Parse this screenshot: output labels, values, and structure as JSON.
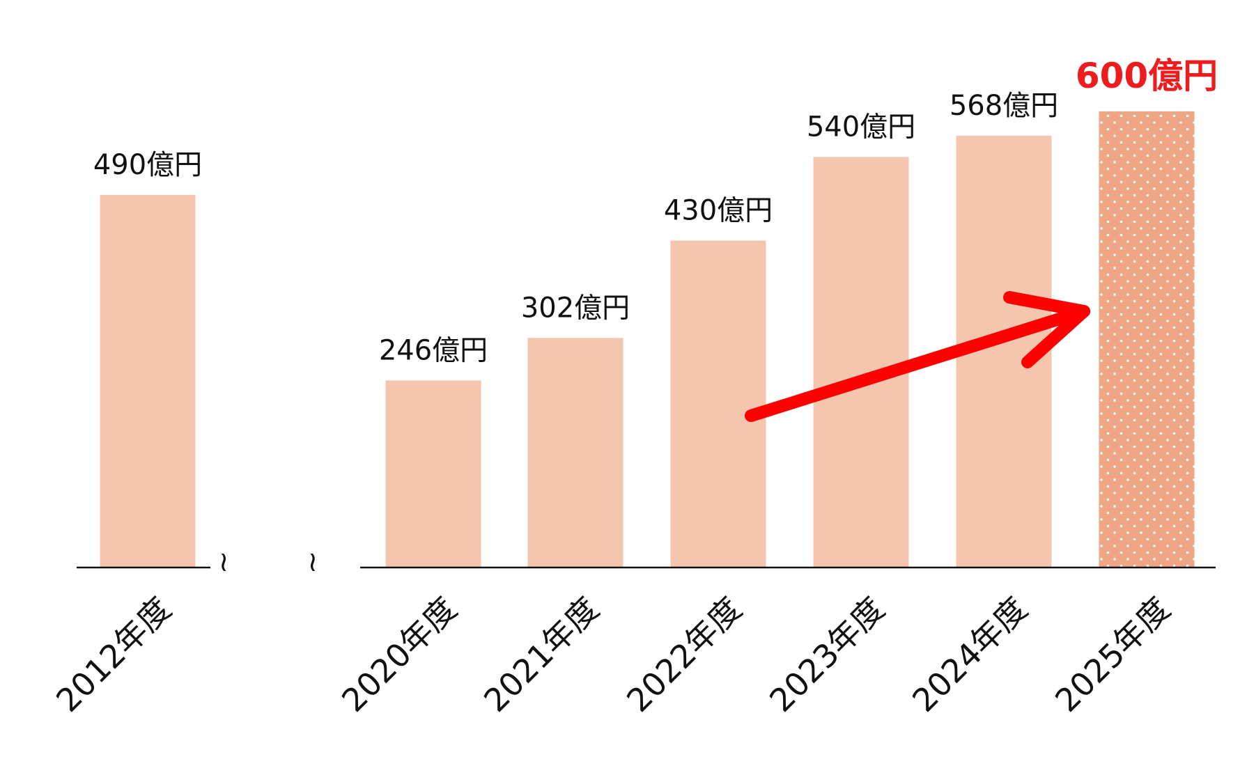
{
  "chart_data": {
    "type": "bar",
    "title": "",
    "xlabel": "",
    "ylabel": "",
    "categories": [
      "2012年度",
      "2020年度",
      "2021年度",
      "2022年度",
      "2023年度",
      "2024年度",
      "2025年度"
    ],
    "values": [
      490,
      246,
      302,
      430,
      540,
      568,
      600
    ],
    "data_labels": [
      "490億円",
      "246億円",
      "302億円",
      "430億円",
      "540億円",
      "568億円",
      "600億円"
    ],
    "ylim": [
      0,
      600
    ],
    "axis_break_between": [
      "2012年度",
      "2020年度"
    ],
    "axis_break_symbol": "≀ ≀",
    "highlighted_category": "2025年度",
    "trend_arrow": {
      "from": "2022年度",
      "to": "2025年度"
    },
    "grid": false,
    "legend": "none",
    "colors": {
      "bar": "#f4c6ad",
      "highlight_bar": "#eea684",
      "highlight_pattern_dot": "#ffffff",
      "highlight_label": "#ee1c1c",
      "label": "#111111",
      "axis": "#111111",
      "arrow": "#ff0000"
    }
  }
}
